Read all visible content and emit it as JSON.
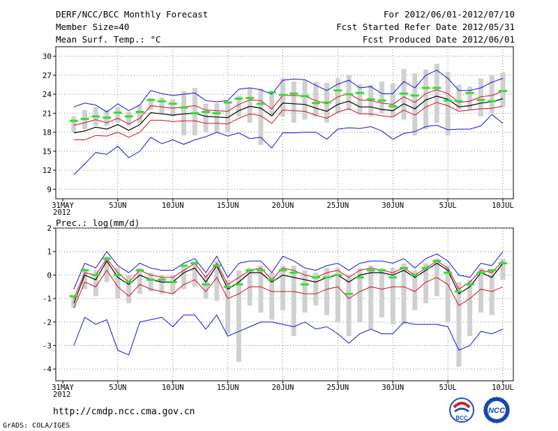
{
  "header": {
    "title": "DERF/NCC/BCC Monthly Forecast",
    "member": "Member Size=40",
    "var1": "Mean Surf. Temp.: °C",
    "period": "For 2012/06/01-2012/07/10",
    "started": "Fcst Started Refer Date 2012/05/31",
    "produced": "Fcst Produced Date 2012/06/01"
  },
  "footer": {
    "url": "http://cmdp.ncc.cma.gov.cn",
    "grads": "GrADS: COLA/IGES",
    "logo1": "BCC",
    "logo2": "NCC"
  },
  "colors": {
    "ensemble_bar": "#d0d0d0",
    "observed": "#33dd33",
    "mean": "#000000",
    "std_band": "#d01020",
    "extreme": "#1010e0",
    "grid": "#808080"
  },
  "chart_data": [
    {
      "type": "line",
      "title": "Mean Surf. Temp.: °C",
      "x_tick_labels": [
        "31MAY\n2012",
        "5JUN",
        "10JUN",
        "15JUN",
        "20JUN",
        "25JUN",
        "30JUN",
        "5JUL",
        "10JUL"
      ],
      "x_tick_days": [
        0,
        5,
        10,
        15,
        20,
        25,
        30,
        35,
        40
      ],
      "ylim": [
        7.5,
        31.5
      ],
      "yticks": [
        9,
        12,
        15,
        18,
        21,
        24,
        27,
        30
      ],
      "days": [
        1,
        2,
        3,
        4,
        5,
        6,
        7,
        8,
        9,
        10,
        11,
        12,
        13,
        14,
        15,
        16,
        17,
        18,
        19,
        20,
        21,
        22,
        23,
        24,
        25,
        26,
        27,
        28,
        29,
        30,
        31,
        32,
        33,
        34,
        35,
        36,
        37,
        38,
        39,
        40
      ],
      "series": [
        {
          "name": "max",
          "values": [
            22.0,
            22.6,
            22.3,
            21.2,
            22.5,
            21.4,
            22.3,
            24.6,
            24.1,
            23.8,
            24.0,
            24.2,
            23.0,
            22.8,
            23.0,
            24.8,
            25.0,
            24.7,
            24.0,
            26.2,
            26.4,
            26.3,
            25.4,
            24.6,
            25.6,
            26.2,
            25.0,
            25.2,
            24.1,
            24.1,
            26.0,
            25.0,
            27.0,
            27.8,
            26.5,
            24.6,
            24.6,
            25.0,
            25.9,
            26.5
          ]
        },
        {
          "name": "mean_plus_std",
          "values": [
            19.1,
            19.5,
            20.0,
            19.5,
            20.2,
            19.3,
            20.2,
            22.2,
            22.0,
            21.8,
            22.0,
            22.2,
            21.5,
            21.4,
            21.3,
            22.4,
            23.1,
            23.0,
            21.7,
            23.8,
            23.8,
            23.7,
            23.0,
            22.5,
            23.6,
            24.1,
            23.1,
            23.0,
            22.6,
            22.4,
            23.6,
            22.7,
            24.1,
            24.7,
            24.1,
            22.7,
            22.9,
            23.6,
            23.8,
            24.5
          ]
        },
        {
          "name": "mean",
          "values": [
            17.9,
            18.2,
            18.8,
            18.5,
            19.2,
            18.3,
            19.2,
            21.1,
            20.9,
            20.7,
            20.9,
            21.0,
            20.5,
            20.4,
            20.3,
            21.4,
            22.1,
            21.8,
            20.6,
            22.6,
            22.5,
            22.4,
            21.8,
            21.3,
            22.4,
            22.9,
            22.0,
            22.0,
            21.6,
            21.4,
            22.5,
            21.7,
            23.1,
            23.7,
            23.2,
            22.0,
            22.2,
            22.6,
            22.8,
            23.3
          ]
        },
        {
          "name": "mean_minus_std",
          "values": [
            16.8,
            16.8,
            17.5,
            17.4,
            18.0,
            17.2,
            18.0,
            19.9,
            19.9,
            19.7,
            19.8,
            19.8,
            19.4,
            19.4,
            19.3,
            20.2,
            20.9,
            20.6,
            19.4,
            21.5,
            21.4,
            21.3,
            20.7,
            20.2,
            21.2,
            21.7,
            20.9,
            20.9,
            20.6,
            20.4,
            21.5,
            20.7,
            22.0,
            22.7,
            22.2,
            21.3,
            21.5,
            21.7,
            21.8,
            22.1
          ]
        },
        {
          "name": "min",
          "values": [
            11.3,
            13.0,
            14.8,
            14.5,
            15.8,
            14.0,
            15.0,
            17.2,
            16.2,
            16.8,
            16.1,
            16.8,
            17.3,
            18.0,
            17.4,
            17.9,
            17.0,
            17.2,
            15.5,
            17.9,
            17.9,
            18.0,
            18.0,
            16.9,
            18.5,
            18.7,
            18.6,
            18.9,
            18.2,
            16.9,
            17.8,
            18.1,
            18.9,
            19.1,
            18.4,
            18.5,
            18.5,
            19.0,
            20.8,
            19.4
          ]
        },
        {
          "name": "box_top",
          "values": [
            20.5,
            21.5,
            22.0,
            21.5,
            22.0,
            21.2,
            22.3,
            23.4,
            23.5,
            23.2,
            24.5,
            25.0,
            22.5,
            22.6,
            22.6,
            23.8,
            25.0,
            24.9,
            24.5,
            26.5,
            26.0,
            26.2,
            26.0,
            25.8,
            26.5,
            27.0,
            25.6,
            25.5,
            26.0,
            25.7,
            28.0,
            27.3,
            27.9,
            28.8,
            27.5,
            25.5,
            25.2,
            26.5,
            27.0,
            27.4
          ]
        },
        {
          "name": "box_bottom",
          "values": [
            18.0,
            18.5,
            19.0,
            19.0,
            19.5,
            19.0,
            19.5,
            21.5,
            21.0,
            20.5,
            17.5,
            17.5,
            18.0,
            18.0,
            18.0,
            20.5,
            19.5,
            16.0,
            20.5,
            20.5,
            19.5,
            20.0,
            20.5,
            19.5,
            21.0,
            21.5,
            21.0,
            20.5,
            21.0,
            20.5,
            20.0,
            17.5,
            18.5,
            19.5,
            17.5,
            21.5,
            21.5,
            20.5,
            21.0,
            22.0
          ]
        },
        {
          "name": "observed",
          "values": [
            19.8,
            20.1,
            20.5,
            20.3,
            21.1,
            20.5,
            21.2,
            23.1,
            22.9,
            22.5,
            21.9,
            21.0,
            21.2,
            21.0,
            22.7,
            23.3,
            23.4,
            22.5,
            24.3,
            23.9,
            24.1,
            23.7,
            22.6,
            22.7,
            24.6,
            24.0,
            24.2,
            23.2,
            23.0,
            22.1,
            24.1,
            23.8,
            25.0,
            25.0,
            23.0,
            22.9,
            24.2,
            23.1,
            22.9,
            24.5
          ]
        }
      ]
    },
    {
      "type": "line",
      "title": "Prec.: log(mm/d)",
      "x_tick_labels": [
        "31MAY\n2012",
        "5JUN",
        "10JUN",
        "15JUN",
        "20JUN",
        "25JUN",
        "30JUN",
        "5JUL",
        "10JUL"
      ],
      "x_tick_days": [
        0,
        5,
        10,
        15,
        20,
        25,
        30,
        35,
        40
      ],
      "ylim": [
        -4.5,
        2.0
      ],
      "yticks": [
        -4,
        -3,
        -2,
        -1,
        0,
        1,
        2
      ],
      "days": [
        1,
        2,
        3,
        4,
        5,
        6,
        7,
        8,
        9,
        10,
        11,
        12,
        13,
        14,
        15,
        16,
        17,
        18,
        19,
        20,
        21,
        22,
        23,
        24,
        25,
        26,
        27,
        28,
        29,
        30,
        31,
        32,
        33,
        34,
        35,
        36,
        37,
        38,
        39,
        40
      ],
      "series": [
        {
          "name": "max",
          "values": [
            -0.6,
            0.5,
            0.3,
            1.0,
            0.4,
            0.1,
            0.5,
            0.3,
            0.2,
            0.2,
            0.5,
            0.7,
            0.1,
            0.8,
            -0.1,
            0.5,
            0.6,
            0.6,
            0.1,
            0.8,
            0.6,
            0.3,
            0.2,
            0.4,
            0.5,
            0.2,
            0.5,
            0.6,
            0.6,
            0.5,
            0.7,
            0.3,
            0.7,
            0.9,
            0.6,
            0.0,
            -0.1,
            0.5,
            0.4,
            1.0
          ]
        },
        {
          "name": "mean_plus_std",
          "values": [
            -1.0,
            0.1,
            0.0,
            0.7,
            0.1,
            -0.3,
            0.2,
            0.0,
            -0.1,
            -0.1,
            0.2,
            0.5,
            -0.1,
            0.5,
            -0.4,
            -0.1,
            0.2,
            0.3,
            -0.2,
            0.3,
            0.2,
            0.0,
            -0.1,
            0.1,
            0.2,
            -0.1,
            0.2,
            0.3,
            0.2,
            0.1,
            0.3,
            0.0,
            0.3,
            0.6,
            0.3,
            -0.6,
            -0.3,
            0.2,
            0.1,
            0.6
          ]
        },
        {
          "name": "mean",
          "values": [
            -1.2,
            0.0,
            -0.2,
            0.6,
            -0.1,
            -0.4,
            0.0,
            -0.2,
            -0.3,
            -0.3,
            0.1,
            0.3,
            -0.3,
            0.4,
            -0.6,
            -0.3,
            0.1,
            0.1,
            -0.3,
            0.0,
            -0.1,
            -0.2,
            -0.3,
            -0.1,
            0.0,
            -0.3,
            0.0,
            0.1,
            0.1,
            0.0,
            0.2,
            -0.1,
            0.2,
            0.5,
            0.2,
            -0.8,
            -0.5,
            0.1,
            -0.1,
            0.5
          ]
        },
        {
          "name": "mean_minus_std",
          "values": [
            -1.4,
            -0.3,
            -0.5,
            0.2,
            -0.5,
            -0.9,
            -0.4,
            -0.6,
            -0.7,
            -0.8,
            -0.4,
            -0.2,
            -0.7,
            -0.1,
            -1.0,
            -0.8,
            -0.5,
            -0.5,
            -0.7,
            -0.7,
            -0.7,
            -0.8,
            -0.8,
            -0.6,
            -0.5,
            -1.0,
            -0.7,
            -0.5,
            -0.6,
            -0.5,
            -0.5,
            -0.7,
            -0.3,
            -0.1,
            -0.4,
            -1.3,
            -1.0,
            -0.6,
            -0.7,
            -0.5
          ]
        },
        {
          "name": "min",
          "values": [
            -3.0,
            -1.8,
            -2.1,
            -1.9,
            -3.2,
            -3.4,
            -2.0,
            -1.9,
            -1.8,
            -2.2,
            -1.7,
            -1.7,
            -2.3,
            -1.7,
            -2.6,
            -2.4,
            -2.2,
            -2.0,
            -2.0,
            -2.1,
            -2.2,
            -2.0,
            -2.3,
            -2.2,
            -2.5,
            -2.9,
            -2.5,
            -2.3,
            -2.5,
            -2.5,
            -2.0,
            -2.1,
            -2.1,
            -2.1,
            -2.2,
            -3.2,
            -3.0,
            -2.4,
            -2.5,
            -2.3
          ]
        },
        {
          "name": "box_top",
          "values": [
            -0.9,
            0.3,
            0.2,
            0.8,
            0.3,
            0.0,
            0.3,
            0.1,
            0.0,
            0.0,
            0.4,
            0.6,
            0.0,
            0.6,
            -0.2,
            0.2,
            0.3,
            0.4,
            0.1,
            0.4,
            0.4,
            0.2,
            0.1,
            0.3,
            0.3,
            0.0,
            0.3,
            0.4,
            0.3,
            0.3,
            0.5,
            0.2,
            0.5,
            0.7,
            0.4,
            -0.3,
            -0.2,
            0.3,
            0.2,
            0.7
          ]
        },
        {
          "name": "box_bottom",
          "values": [
            -1.4,
            -0.6,
            -0.9,
            -0.3,
            -1.0,
            -1.2,
            -0.8,
            -0.7,
            -0.8,
            -0.8,
            -0.6,
            -0.5,
            -1.0,
            -1.1,
            -2.5,
            -3.7,
            -1.3,
            -1.6,
            -1.9,
            -1.5,
            -2.6,
            -1.6,
            -1.3,
            -1.7,
            -2.0,
            -2.6,
            -2.0,
            -2.3,
            -1.8,
            -2.1,
            -2.1,
            -1.5,
            -1.2,
            -0.9,
            -2.0,
            -3.9,
            -2.6,
            -1.6,
            -1.7,
            -0.2
          ]
        },
        {
          "name": "observed",
          "values": [
            -0.9,
            0.2,
            0.0,
            0.7,
            0.0,
            -0.3,
            0.2,
            -0.2,
            -0.2,
            -0.3,
            0.4,
            0.5,
            -0.4,
            0.4,
            -0.5,
            -0.4,
            0.2,
            0.2,
            -0.2,
            0.2,
            0.1,
            -0.4,
            -0.1,
            -0.1,
            0.0,
            -0.8,
            -0.1,
            0.2,
            0.2,
            -0.1,
            0.3,
            0.0,
            0.3,
            0.6,
            0.1,
            -0.7,
            -0.4,
            0.1,
            0.2,
            0.5
          ]
        }
      ]
    }
  ]
}
